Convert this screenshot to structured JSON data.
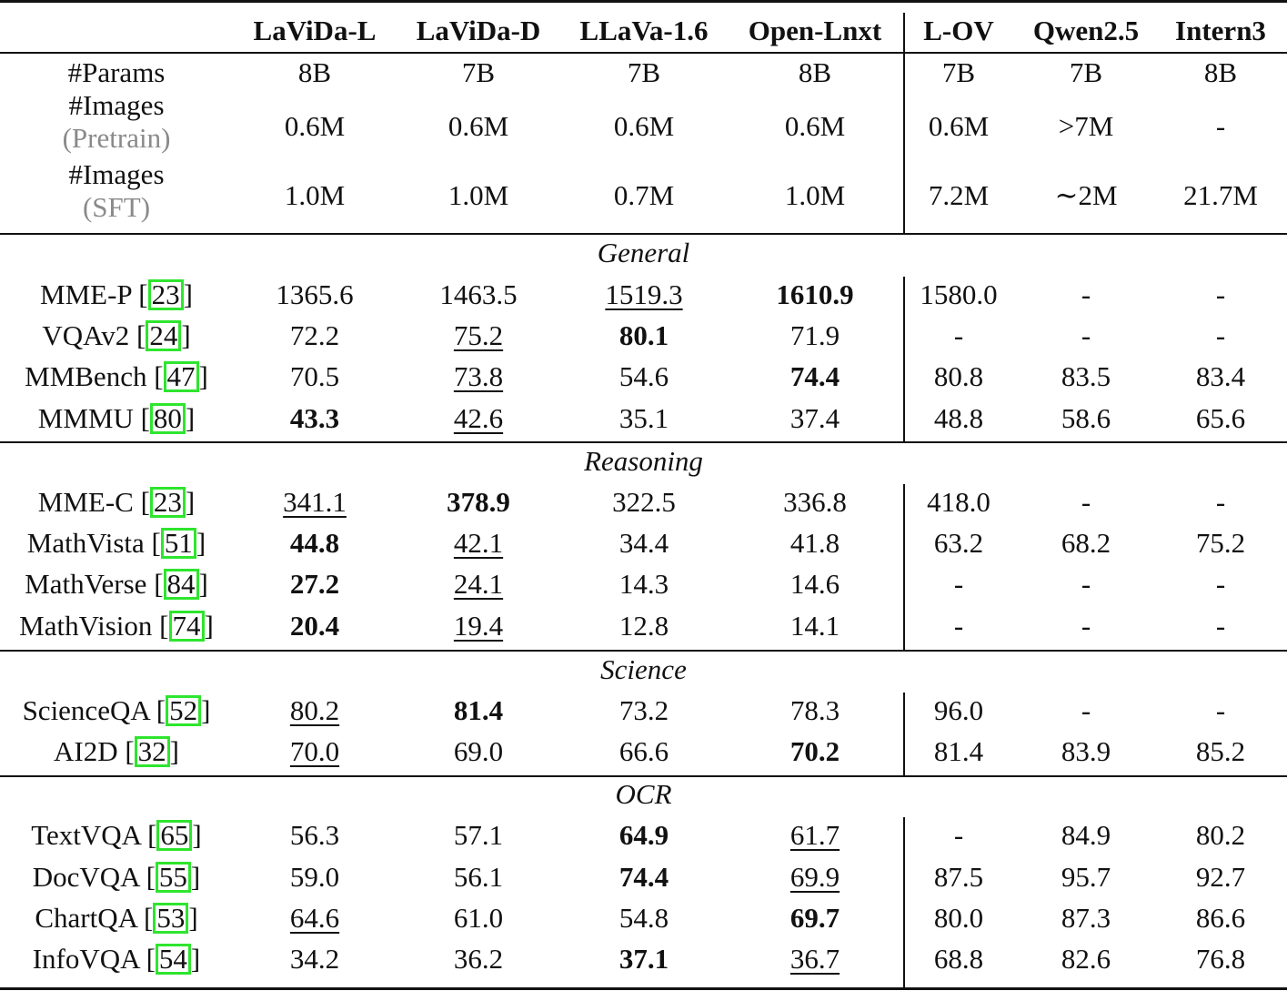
{
  "columns": [
    "LaViDa-L",
    "LaViDa-D",
    "LLaVa-1.6",
    "Open-Lnxt",
    "L-OV",
    "Qwen2.5",
    "Intern3"
  ],
  "meta_rows": [
    {
      "label": "#Params",
      "sub": "",
      "values": [
        "8B",
        "7B",
        "7B",
        "8B",
        "7B",
        "7B",
        "8B"
      ]
    },
    {
      "label": "#Images",
      "sub": "(Pretrain)",
      "values": [
        "0.6M",
        "0.6M",
        "0.6M",
        "0.6M",
        "0.6M",
        ">7M",
        "-"
      ]
    },
    {
      "label": "#Images",
      "sub": "(SFT)",
      "values": [
        "1.0M",
        "1.0M",
        "0.7M",
        "1.0M",
        "7.2M",
        "∼2M",
        "21.7M"
      ]
    }
  ],
  "sections": [
    {
      "title": "General",
      "rows": [
        {
          "name": "MME-P",
          "ref": "23",
          "values": [
            "1365.6",
            "1463.5",
            "1519.3",
            "1610.9",
            "1580.0",
            "-",
            "-"
          ],
          "bold": [
            3
          ],
          "underline": [
            2
          ]
        },
        {
          "name": "VQAv2",
          "ref": "24",
          "values": [
            "72.2",
            "75.2",
            "80.1",
            "71.9",
            "-",
            "-",
            "-"
          ],
          "bold": [
            2
          ],
          "underline": [
            1
          ]
        },
        {
          "name": "MMBench",
          "ref": "47",
          "values": [
            "70.5",
            "73.8",
            "54.6",
            "74.4",
            "80.8",
            "83.5",
            "83.4"
          ],
          "bold": [
            3
          ],
          "underline": [
            1
          ]
        },
        {
          "name": "MMMU",
          "ref": "80",
          "values": [
            "43.3",
            "42.6",
            "35.1",
            "37.4",
            "48.8",
            "58.6",
            "65.6"
          ],
          "bold": [
            0
          ],
          "underline": [
            1
          ]
        }
      ]
    },
    {
      "title": "Reasoning",
      "rows": [
        {
          "name": "MME-C",
          "ref": "23",
          "values": [
            "341.1",
            "378.9",
            "322.5",
            "336.8",
            "418.0",
            "-",
            "-"
          ],
          "bold": [
            1
          ],
          "underline": [
            0
          ]
        },
        {
          "name": "MathVista",
          "ref": "51",
          "values": [
            "44.8",
            "42.1",
            "34.4",
            "41.8",
            "63.2",
            "68.2",
            "75.2"
          ],
          "bold": [
            0
          ],
          "underline": [
            1
          ]
        },
        {
          "name": "MathVerse",
          "ref": "84",
          "values": [
            "27.2",
            "24.1",
            "14.3",
            "14.6",
            "-",
            "-",
            "-"
          ],
          "bold": [
            0
          ],
          "underline": [
            1
          ]
        },
        {
          "name": "MathVision",
          "ref": "74",
          "values": [
            "20.4",
            "19.4",
            "12.8",
            "14.1",
            "-",
            "-",
            "-"
          ],
          "bold": [
            0
          ],
          "underline": [
            1
          ]
        }
      ]
    },
    {
      "title": "Science",
      "rows": [
        {
          "name": "ScienceQA",
          "ref": "52",
          "values": [
            "80.2",
            "81.4",
            "73.2",
            "78.3",
            "96.0",
            "-",
            "-"
          ],
          "bold": [
            1
          ],
          "underline": [
            0
          ]
        },
        {
          "name": "AI2D",
          "ref": "32",
          "values": [
            "70.0",
            "69.0",
            "66.6",
            "70.2",
            "81.4",
            "83.9",
            "85.2"
          ],
          "bold": [
            3
          ],
          "underline": [
            0
          ]
        }
      ]
    },
    {
      "title": "OCR",
      "rows": [
        {
          "name": "TextVQA",
          "ref": "65",
          "values": [
            "56.3",
            "57.1",
            "64.9",
            "61.7",
            "-",
            "84.9",
            "80.2"
          ],
          "bold": [
            2
          ],
          "underline": [
            3
          ]
        },
        {
          "name": "DocVQA",
          "ref": "55",
          "values": [
            "59.0",
            "56.1",
            "74.4",
            "69.9",
            "87.5",
            "95.7",
            "92.7"
          ],
          "bold": [
            2
          ],
          "underline": [
            3
          ]
        },
        {
          "name": "ChartQA",
          "ref": "53",
          "values": [
            "64.6",
            "61.0",
            "54.8",
            "69.7",
            "80.0",
            "87.3",
            "86.6"
          ],
          "bold": [
            3
          ],
          "underline": [
            0
          ]
        },
        {
          "name": "InfoVQA",
          "ref": "54",
          "values": [
            "34.2",
            "36.2",
            "37.1",
            "36.7",
            "68.8",
            "82.6",
            "76.8"
          ],
          "bold": [
            2
          ],
          "underline": [
            3
          ]
        }
      ]
    }
  ]
}
